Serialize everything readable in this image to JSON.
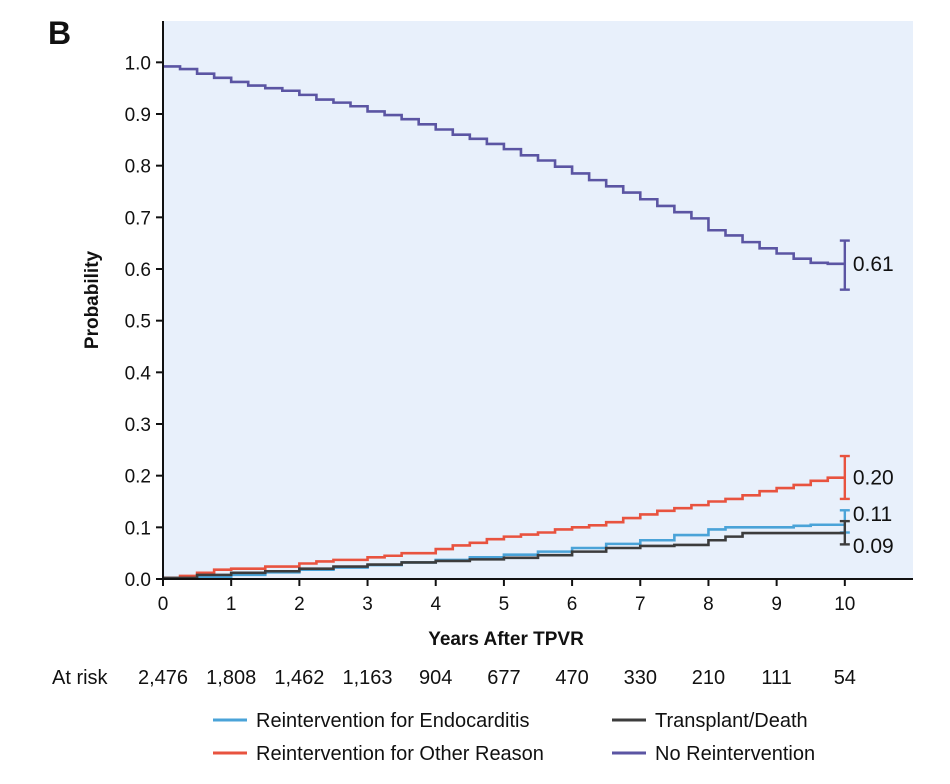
{
  "panel_label": "B",
  "chart_data": {
    "type": "line",
    "title": "",
    "xlabel": "Years After TPVR",
    "ylabel": "Probability",
    "xlim": [
      0,
      11
    ],
    "ylim": [
      0,
      1.08
    ],
    "x_ticks": [
      0,
      1,
      2,
      3,
      4,
      5,
      6,
      7,
      8,
      9,
      10
    ],
    "y_ticks": [
      0.0,
      0.1,
      0.2,
      0.3,
      0.4,
      0.5,
      0.6,
      0.7,
      0.8,
      0.9,
      1.0
    ],
    "y_tick_labels": [
      "0.0",
      "0.1",
      "0.2",
      "0.3",
      "0.4",
      "0.5",
      "0.6",
      "0.7",
      "0.8",
      "0.9",
      "1.0"
    ],
    "grid": false,
    "background": "#e8f0fb",
    "series": [
      {
        "name": "No Reintervention",
        "color": "#5b55a3",
        "end_label": "0.61",
        "ci": [
          0.56,
          0.655
        ],
        "points": [
          [
            0,
            0.992
          ],
          [
            0.25,
            0.987
          ],
          [
            0.5,
            0.978
          ],
          [
            0.75,
            0.97
          ],
          [
            1,
            0.962
          ],
          [
            1.25,
            0.955
          ],
          [
            1.5,
            0.95
          ],
          [
            1.75,
            0.945
          ],
          [
            2,
            0.937
          ],
          [
            2.25,
            0.928
          ],
          [
            2.5,
            0.922
          ],
          [
            2.75,
            0.915
          ],
          [
            3,
            0.905
          ],
          [
            3.25,
            0.898
          ],
          [
            3.5,
            0.89
          ],
          [
            3.75,
            0.88
          ],
          [
            4,
            0.87
          ],
          [
            4.25,
            0.86
          ],
          [
            4.5,
            0.852
          ],
          [
            4.75,
            0.842
          ],
          [
            5,
            0.832
          ],
          [
            5.25,
            0.82
          ],
          [
            5.5,
            0.81
          ],
          [
            5.75,
            0.798
          ],
          [
            6,
            0.785
          ],
          [
            6.25,
            0.772
          ],
          [
            6.5,
            0.76
          ],
          [
            6.75,
            0.748
          ],
          [
            7,
            0.735
          ],
          [
            7.25,
            0.722
          ],
          [
            7.5,
            0.71
          ],
          [
            7.75,
            0.698
          ],
          [
            8,
            0.675
          ],
          [
            8.25,
            0.665
          ],
          [
            8.5,
            0.652
          ],
          [
            8.75,
            0.64
          ],
          [
            9,
            0.63
          ],
          [
            9.25,
            0.62
          ],
          [
            9.5,
            0.612
          ],
          [
            9.75,
            0.61
          ],
          [
            10,
            0.61
          ]
        ]
      },
      {
        "name": "Reintervention for Other Reason",
        "color": "#e8533f",
        "end_label": "0.20",
        "ci": [
          0.155,
          0.238
        ],
        "points": [
          [
            0,
            0.002
          ],
          [
            0.25,
            0.006
          ],
          [
            0.5,
            0.012
          ],
          [
            0.75,
            0.018
          ],
          [
            1,
            0.02
          ],
          [
            1.5,
            0.024
          ],
          [
            2,
            0.03
          ],
          [
            2.25,
            0.034
          ],
          [
            2.5,
            0.037
          ],
          [
            3,
            0.042
          ],
          [
            3.25,
            0.045
          ],
          [
            3.5,
            0.05
          ],
          [
            4,
            0.058
          ],
          [
            4.25,
            0.065
          ],
          [
            4.5,
            0.07
          ],
          [
            4.75,
            0.077
          ],
          [
            5,
            0.082
          ],
          [
            5.25,
            0.086
          ],
          [
            5.5,
            0.09
          ],
          [
            5.75,
            0.096
          ],
          [
            6,
            0.1
          ],
          [
            6.25,
            0.104
          ],
          [
            6.5,
            0.11
          ],
          [
            6.75,
            0.118
          ],
          [
            7,
            0.125
          ],
          [
            7.25,
            0.132
          ],
          [
            7.5,
            0.137
          ],
          [
            7.75,
            0.143
          ],
          [
            8,
            0.15
          ],
          [
            8.25,
            0.155
          ],
          [
            8.5,
            0.162
          ],
          [
            8.75,
            0.17
          ],
          [
            9,
            0.176
          ],
          [
            9.25,
            0.182
          ],
          [
            9.5,
            0.19
          ],
          [
            9.75,
            0.196
          ],
          [
            10,
            0.196
          ]
        ]
      },
      {
        "name": "Reintervention for Endocarditis",
        "color": "#4aa3d8",
        "end_label": "0.11",
        "ci": [
          0.09,
          0.133
        ],
        "points": [
          [
            0,
            0.001
          ],
          [
            0.5,
            0.004
          ],
          [
            1,
            0.008
          ],
          [
            1.5,
            0.013
          ],
          [
            2,
            0.018
          ],
          [
            2.5,
            0.022
          ],
          [
            3,
            0.027
          ],
          [
            3.5,
            0.032
          ],
          [
            4,
            0.037
          ],
          [
            4.5,
            0.042
          ],
          [
            5,
            0.047
          ],
          [
            5.5,
            0.053
          ],
          [
            6,
            0.06
          ],
          [
            6.5,
            0.068
          ],
          [
            7,
            0.075
          ],
          [
            7.5,
            0.085
          ],
          [
            8,
            0.096
          ],
          [
            8.25,
            0.1
          ],
          [
            8.5,
            0.1
          ],
          [
            9,
            0.1
          ],
          [
            9.25,
            0.103
          ],
          [
            9.5,
            0.105
          ],
          [
            10,
            0.105
          ]
        ]
      },
      {
        "name": "Transplant/Death",
        "color": "#3c3c3c",
        "end_label": "0.09",
        "ci": [
          0.067,
          0.112
        ],
        "points": [
          [
            0,
            0.002
          ],
          [
            0.5,
            0.008
          ],
          [
            1,
            0.012
          ],
          [
            1.5,
            0.015
          ],
          [
            2,
            0.02
          ],
          [
            2.5,
            0.024
          ],
          [
            3,
            0.028
          ],
          [
            3.5,
            0.032
          ],
          [
            4,
            0.035
          ],
          [
            4.5,
            0.038
          ],
          [
            5,
            0.041
          ],
          [
            5.5,
            0.046
          ],
          [
            6,
            0.053
          ],
          [
            6.5,
            0.06
          ],
          [
            7,
            0.064
          ],
          [
            7.5,
            0.066
          ],
          [
            8,
            0.075
          ],
          [
            8.25,
            0.082
          ],
          [
            8.5,
            0.089
          ],
          [
            9,
            0.089
          ],
          [
            9.5,
            0.089
          ],
          [
            10,
            0.089
          ]
        ]
      }
    ],
    "at_risk": {
      "label": "At risk",
      "values": [
        "2,476",
        "1,808",
        "1,462",
        "1,163",
        "904",
        "677",
        "470",
        "330",
        "210",
        "111",
        "54"
      ]
    },
    "legend": [
      {
        "name": "Reintervention for Endocarditis",
        "color": "#4aa3d8"
      },
      {
        "name": "Transplant/Death",
        "color": "#3c3c3c"
      },
      {
        "name": "Reintervention for Other Reason",
        "color": "#e8533f"
      },
      {
        "name": "No Reintervention",
        "color": "#5b55a3"
      }
    ]
  }
}
